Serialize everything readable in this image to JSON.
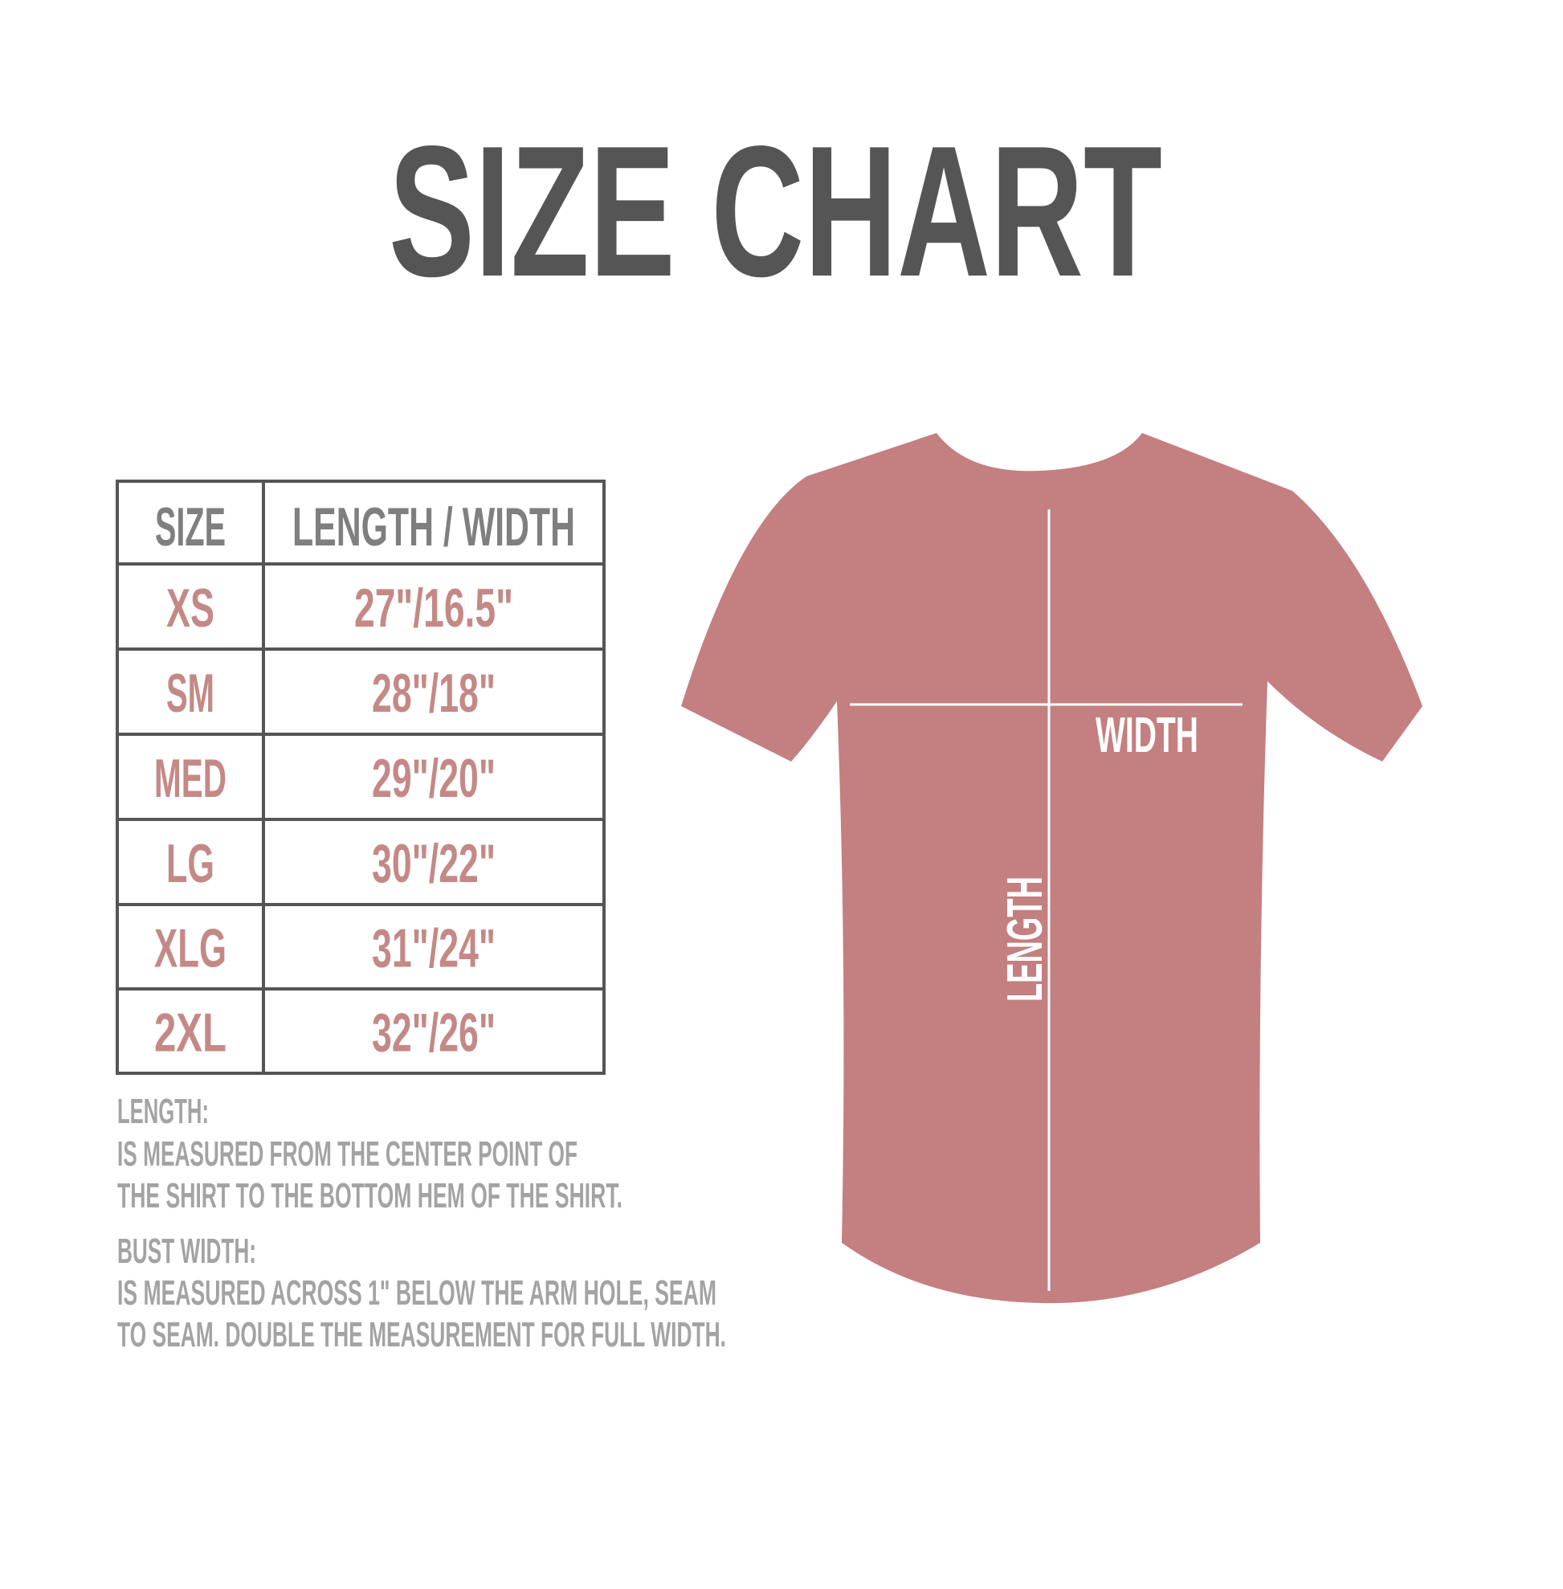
{
  "title": "SIZE CHART",
  "table": {
    "headers": [
      "SIZE",
      "LENGTH / WIDTH"
    ],
    "rows": [
      {
        "size": "XS",
        "measure": "27\"/16.5\""
      },
      {
        "size": "SM",
        "measure": "28\"/18\""
      },
      {
        "size": "MED",
        "measure": "29\"/20\""
      },
      {
        "size": "LG",
        "measure": "30\"/22\""
      },
      {
        "size": "XLG",
        "measure": "31\"/24\""
      },
      {
        "size": "2XL",
        "measure": "32\"/26\""
      }
    ]
  },
  "notes": {
    "length_heading": "LENGTH:",
    "length_line1": "IS MEASURED FROM THE CENTER POINT OF",
    "length_line2": "THE SHIRT TO THE BOTTOM HEM OF THE SHIRT.",
    "width_heading": "BUST WIDTH:",
    "width_line1": "IS MEASURED ACROSS  1\" BELOW THE ARM HOLE, SEAM",
    "width_line2": "TO SEAM. DOUBLE THE MEASUREMENT FOR FULL WIDTH."
  },
  "diagram": {
    "width_label": "WIDTH",
    "length_label": "LENGTH",
    "shirt_color": "#c47f80"
  },
  "colors": {
    "title": "#555555",
    "header_text": "#7f7f7f",
    "value_text": "#c48986",
    "note_text": "#a3a3a3"
  }
}
